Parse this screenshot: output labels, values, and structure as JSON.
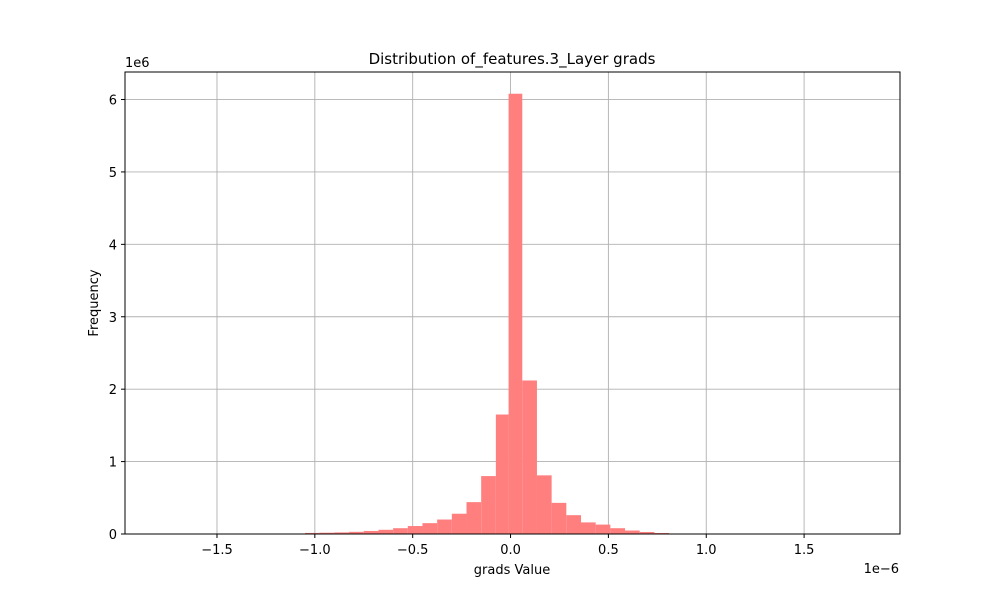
{
  "chart_data": {
    "type": "bar",
    "title": "Distribution of_features.3_Layer grads",
    "xlabel": "grads Value",
    "ylabel": "Frequency",
    "x_offset_label": "1e−6",
    "y_offset_label": "1e6",
    "xlim": [
      -1.97e-06,
      1.99e-06
    ],
    "ylim": [
      0,
      6380000.0
    ],
    "x_ticks": [
      -1.5e-06,
      -1e-06,
      -5e-07,
      0,
      5e-07,
      1e-06,
      1.5e-06
    ],
    "x_tick_labels": [
      "−1.5",
      "−1.0",
      "−0.5",
      "0.0",
      "0.5",
      "1.0",
      "1.5"
    ],
    "y_ticks": [
      0,
      1000000.0,
      2000000.0,
      3000000.0,
      4000000.0,
      5000000.0,
      6000000.0
    ],
    "y_tick_labels": [
      "0",
      "1",
      "2",
      "3",
      "4",
      "5",
      "6"
    ],
    "grid": true,
    "bar_color": "#ff7f7f",
    "bins": [
      {
        "x0": -1.79e-06,
        "x1": -1.72e-06,
        "count": 1000
      },
      {
        "x0": -1.72e-06,
        "x1": -1.64e-06,
        "count": 1000
      },
      {
        "x0": -1.64e-06,
        "x1": -1.57e-06,
        "count": 1000
      },
      {
        "x0": -1.57e-06,
        "x1": -1.5e-06,
        "count": 1000
      },
      {
        "x0": -1.5e-06,
        "x1": -1.42e-06,
        "count": 1000
      },
      {
        "x0": -1.42e-06,
        "x1": -1.35e-06,
        "count": 1000
      },
      {
        "x0": -1.35e-06,
        "x1": -1.27e-06,
        "count": 1000
      },
      {
        "x0": -1.27e-06,
        "x1": -1.2e-06,
        "count": 2000
      },
      {
        "x0": -1.2e-06,
        "x1": -1.12e-06,
        "count": 3000
      },
      {
        "x0": -1.12e-06,
        "x1": -1.05e-06,
        "count": 5000
      },
      {
        "x0": -1.05e-06,
        "x1": -9.75e-07,
        "count": 15000
      },
      {
        "x0": -9.75e-07,
        "x1": -9e-07,
        "count": 18000
      },
      {
        "x0": -9e-07,
        "x1": -8.25e-07,
        "count": 22000
      },
      {
        "x0": -8.25e-07,
        "x1": -7.5e-07,
        "count": 30000
      },
      {
        "x0": -7.5e-07,
        "x1": -6.75e-07,
        "count": 42000
      },
      {
        "x0": -6.75e-07,
        "x1": -6e-07,
        "count": 58000
      },
      {
        "x0": -6e-07,
        "x1": -5.25e-07,
        "count": 80000
      },
      {
        "x0": -5.25e-07,
        "x1": -4.5e-07,
        "count": 110000
      },
      {
        "x0": -4.5e-07,
        "x1": -3.75e-07,
        "count": 150000
      },
      {
        "x0": -3.75e-07,
        "x1": -3e-07,
        "count": 200000
      },
      {
        "x0": -3e-07,
        "x1": -2.25e-07,
        "count": 280000
      },
      {
        "x0": -2.25e-07,
        "x1": -1.5e-07,
        "count": 440000
      },
      {
        "x0": -1.5e-07,
        "x1": -7.5e-08,
        "count": 800000
      },
      {
        "x0": -7.5e-08,
        "x1": -1e-08,
        "count": 1650000
      },
      {
        "x0": -1e-08,
        "x1": 6e-08,
        "count": 6080000
      },
      {
        "x0": 6e-08,
        "x1": 1.35e-07,
        "count": 2120000
      },
      {
        "x0": 1.35e-07,
        "x1": 2.1e-07,
        "count": 810000
      },
      {
        "x0": 2.1e-07,
        "x1": 2.85e-07,
        "count": 430000
      },
      {
        "x0": 2.85e-07,
        "x1": 3.6e-07,
        "count": 260000
      },
      {
        "x0": 3.6e-07,
        "x1": 4.35e-07,
        "count": 160000
      },
      {
        "x0": 4.35e-07,
        "x1": 5.1e-07,
        "count": 130000
      },
      {
        "x0": 5.1e-07,
        "x1": 5.85e-07,
        "count": 80000
      },
      {
        "x0": 5.85e-07,
        "x1": 6.6e-07,
        "count": 48000
      },
      {
        "x0": 6.6e-07,
        "x1": 7.35e-07,
        "count": 28000
      },
      {
        "x0": 7.35e-07,
        "x1": 8.1e-07,
        "count": 14000
      },
      {
        "x0": 8.1e-07,
        "x1": 8.85e-07,
        "count": 7000
      },
      {
        "x0": 8.85e-07,
        "x1": 9.6e-07,
        "count": 3000
      },
      {
        "x0": 9.6e-07,
        "x1": 1.035e-06,
        "count": 2000
      },
      {
        "x0": 1.035e-06,
        "x1": 1.11e-06,
        "count": 1000
      },
      {
        "x0": 1.11e-06,
        "x1": 1.185e-06,
        "count": 1000
      },
      {
        "x0": 1.185e-06,
        "x1": 1.26e-06,
        "count": 1000
      },
      {
        "x0": 1.26e-06,
        "x1": 1.335e-06,
        "count": 1000
      },
      {
        "x0": 1.335e-06,
        "x1": 1.41e-06,
        "count": 1000
      },
      {
        "x0": 1.41e-06,
        "x1": 1.485e-06,
        "count": 1000
      },
      {
        "x0": 1.485e-06,
        "x1": 1.56e-06,
        "count": 1000
      },
      {
        "x0": 1.56e-06,
        "x1": 1.635e-06,
        "count": 1000
      },
      {
        "x0": 1.635e-06,
        "x1": 1.71e-06,
        "count": 1000
      },
      {
        "x0": 1.71e-06,
        "x1": 1.8e-06,
        "count": 1000
      }
    ]
  }
}
